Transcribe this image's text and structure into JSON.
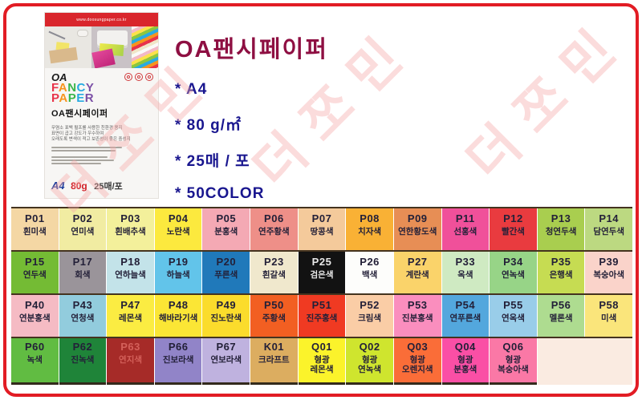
{
  "page": {
    "background": "#FFFFFF",
    "frame_color": "#E21C24"
  },
  "watermark": {
    "text": "더쪼민",
    "color": "#F7A9A9"
  },
  "package": {
    "url": "www.doosungpaper.co.kr",
    "logo_line1": "OA",
    "logo_line2": "FANCY",
    "logo_line3": "PAPER",
    "logo_korean": "OA팬시페이퍼",
    "desc_lines": [
      "무염소 표백 펄프를 사용한 친환경 용지",
      "표면이 곱고 강도가 우수하여",
      "오래도록 변색이 적고 보존성이 좋은 중성지"
    ],
    "spec": {
      "size": "A4",
      "weight": "80g",
      "count": "25매/포"
    }
  },
  "info": {
    "title": "OA팬시페이퍼",
    "bullets": [
      "* A4",
      "* 80 g/㎡",
      "* 25매 / 포",
      "* 50COLOR"
    ]
  },
  "grid": {
    "rows": [
      [
        {
          "code": "P01",
          "name": "흰미색",
          "bg": "#F4D7A4"
        },
        {
          "code": "P02",
          "name": "연미색",
          "bg": "#F1ECA2"
        },
        {
          "code": "P03",
          "name": "흰배추색",
          "bg": "#F3F09B"
        },
        {
          "code": "P04",
          "name": "노란색",
          "bg": "#FCE93E"
        },
        {
          "code": "P05",
          "name": "분홍색",
          "bg": "#F4A9B4"
        },
        {
          "code": "P06",
          "name": "연주황색",
          "bg": "#EE8F88"
        },
        {
          "code": "P07",
          "name": "땅콩색",
          "bg": "#F4CA9B"
        },
        {
          "code": "P08",
          "name": "치자색",
          "bg": "#F9B135"
        },
        {
          "code": "P09",
          "name": "연한황도색",
          "bg": "#E78E55"
        },
        {
          "code": "P11",
          "name": "선홍색",
          "bg": "#F0509A"
        },
        {
          "code": "P12",
          "name": "빨간색",
          "bg": "#E93B3F"
        },
        {
          "code": "P13",
          "name": "청연두색",
          "bg": "#A9CE4F"
        },
        {
          "code": "P14",
          "name": "담연두색",
          "bg": "#BCD981"
        }
      ],
      [
        {
          "code": "P15",
          "name": "연두색",
          "bg": "#74BB34"
        },
        {
          "code": "P17",
          "name": "회색",
          "bg": "#9A949A"
        },
        {
          "code": "P18",
          "name": "연하늘색",
          "bg": "#C3E3E9"
        },
        {
          "code": "P19",
          "name": "하늘색",
          "bg": "#62C4EA"
        },
        {
          "code": "P20",
          "name": "푸른색",
          "bg": "#2079BA"
        },
        {
          "code": "P23",
          "name": "흰갈색",
          "bg": "#F0E8CD"
        },
        {
          "code": "P25",
          "name": "검은색",
          "bg": "#121212",
          "fg": "#E9E9E9"
        },
        {
          "code": "P26",
          "name": "백색",
          "bg": "#FDFDFB"
        },
        {
          "code": "P27",
          "name": "계란색",
          "bg": "#FAD36A"
        },
        {
          "code": "P33",
          "name": "옥색",
          "bg": "#CFEAC2"
        },
        {
          "code": "P34",
          "name": "연녹색",
          "bg": "#97D487"
        },
        {
          "code": "P35",
          "name": "은행색",
          "bg": "#C6DC52"
        },
        {
          "code": "P39",
          "name": "복숭아색",
          "bg": "#FAD3CA"
        }
      ],
      [
        {
          "code": "P40",
          "name": "연분홍색",
          "bg": "#F5BBC4"
        },
        {
          "code": "P43",
          "name": "연청색",
          "bg": "#92CCDD"
        },
        {
          "code": "P47",
          "name": "레몬색",
          "bg": "#FBEC42"
        },
        {
          "code": "P48",
          "name": "해바라기색",
          "bg": "#FBE635"
        },
        {
          "code": "P49",
          "name": "진노란색",
          "bg": "#FBDC2C"
        },
        {
          "code": "P50",
          "name": "주황색",
          "bg": "#F25F22"
        },
        {
          "code": "P51",
          "name": "진주홍색",
          "bg": "#F03A22"
        },
        {
          "code": "P52",
          "name": "크림색",
          "bg": "#FACDA6"
        },
        {
          "code": "P53",
          "name": "진분홍색",
          "bg": "#FA8EBE"
        },
        {
          "code": "P54",
          "name": "연푸른색",
          "bg": "#53A7DD"
        },
        {
          "code": "P55",
          "name": "연옥색",
          "bg": "#99CDE9"
        },
        {
          "code": "P56",
          "name": "멜론색",
          "bg": "#AEDC90"
        },
        {
          "code": "P58",
          "name": "미색",
          "bg": "#FAE57B"
        }
      ],
      [
        {
          "code": "P60",
          "name": "녹색",
          "bg": "#61BC42"
        },
        {
          "code": "P62",
          "name": "진녹색",
          "bg": "#1F8439"
        },
        {
          "code": "P63",
          "name": "연지색",
          "bg": "#A62B28",
          "fg": "#D4605A"
        },
        {
          "code": "P66",
          "name": "진보라색",
          "bg": "#9184C8"
        },
        {
          "code": "P67",
          "name": "연보라색",
          "bg": "#BFB2DF"
        },
        {
          "code": "K01",
          "name": "크라프트",
          "bg": "#DCAD60"
        },
        {
          "code": "Q01",
          "name": "형광\n레몬색",
          "bg": "#FBF32B"
        },
        {
          "code": "Q02",
          "name": "형광\n연녹색",
          "bg": "#CFE52E"
        },
        {
          "code": "Q03",
          "name": "형광\n오렌지색",
          "bg": "#FA6D38"
        },
        {
          "code": "Q04",
          "name": "형광\n분홍색",
          "bg": "#FA4FA5"
        },
        {
          "code": "Q06",
          "name": "형광\n복숭아색",
          "bg": "#FA78A6"
        },
        {
          "code": "",
          "name": "",
          "bg": "#FAEBE1",
          "span": 2
        }
      ]
    ]
  }
}
